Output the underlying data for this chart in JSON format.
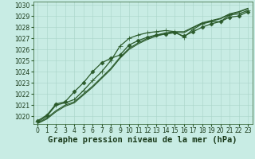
{
  "bg_color": "#c8ece4",
  "grid_color": "#a8d4c8",
  "line_color": "#2a5a2a",
  "xlabel": "Graphe pression niveau de la mer (hPa)",
  "xlim": [
    -0.5,
    23.5
  ],
  "ylim": [
    1019.3,
    1030.3
  ],
  "yticks": [
    1020,
    1021,
    1022,
    1023,
    1024,
    1025,
    1026,
    1027,
    1028,
    1029,
    1030
  ],
  "xticks": [
    0,
    1,
    2,
    3,
    4,
    5,
    6,
    7,
    8,
    9,
    10,
    11,
    12,
    13,
    14,
    15,
    16,
    17,
    18,
    19,
    20,
    21,
    22,
    23
  ],
  "series": [
    {
      "x": [
        0,
        1,
        2,
        3,
        4,
        5,
        6,
        7,
        8,
        9,
        10,
        11,
        12,
        13,
        14,
        15,
        16,
        17,
        18,
        19,
        20,
        21,
        22,
        23
      ],
      "y": [
        1019.5,
        1020.0,
        1021.0,
        1021.2,
        1021.5,
        1022.3,
        1023.2,
        1024.0,
        1025.0,
        1026.3,
        1027.0,
        1027.3,
        1027.5,
        1027.6,
        1027.7,
        1027.6,
        1027.1,
        1027.8,
        1028.3,
        1028.5,
        1028.5,
        1029.1,
        1029.2,
        1029.5
      ],
      "marker": "+",
      "markersize": 4,
      "linewidth": 0.9,
      "zorder": 4
    },
    {
      "x": [
        0,
        1,
        2,
        3,
        4,
        5,
        6,
        7,
        8,
        9,
        10,
        11,
        12,
        13,
        14,
        15,
        16,
        17,
        18,
        19,
        20,
        21,
        22,
        23
      ],
      "y": [
        1019.4,
        1019.85,
        1020.5,
        1021.0,
        1021.3,
        1022.0,
        1022.7,
        1023.5,
        1024.3,
        1025.3,
        1026.1,
        1026.6,
        1027.0,
        1027.3,
        1027.5,
        1027.6,
        1027.6,
        1028.0,
        1028.4,
        1028.6,
        1028.8,
        1029.2,
        1029.4,
        1029.7
      ],
      "marker": null,
      "markersize": 0,
      "linewidth": 0.8,
      "zorder": 3
    },
    {
      "x": [
        0,
        1,
        2,
        3,
        4,
        5,
        6,
        7,
        8,
        9,
        10,
        11,
        12,
        13,
        14,
        15,
        16,
        17,
        18,
        19,
        20,
        21,
        22,
        23
      ],
      "y": [
        1019.35,
        1019.75,
        1020.4,
        1020.9,
        1021.2,
        1021.9,
        1022.6,
        1023.4,
        1024.2,
        1025.2,
        1026.0,
        1026.5,
        1026.9,
        1027.2,
        1027.4,
        1027.55,
        1027.5,
        1027.95,
        1028.35,
        1028.55,
        1028.75,
        1029.15,
        1029.35,
        1029.65
      ],
      "marker": null,
      "markersize": 0,
      "linewidth": 0.8,
      "zorder": 3
    },
    {
      "x": [
        0,
        1,
        2,
        3,
        4,
        5,
        6,
        7,
        8,
        9,
        10,
        11,
        12,
        13,
        14,
        15,
        16,
        17,
        18,
        19,
        20,
        21,
        22,
        23
      ],
      "y": [
        1019.6,
        1020.1,
        1021.1,
        1021.3,
        1022.2,
        1023.0,
        1024.0,
        1024.8,
        1025.2,
        1025.5,
        1026.4,
        1026.8,
        1027.1,
        1027.3,
        1027.4,
        1027.5,
        1027.2,
        1027.6,
        1028.0,
        1028.3,
        1028.5,
        1028.9,
        1029.0,
        1029.4
      ],
      "marker": "D",
      "markersize": 2.5,
      "linewidth": 0.9,
      "zorder": 4
    }
  ],
  "tick_fontsize": 5.5,
  "label_fontsize": 7.5
}
